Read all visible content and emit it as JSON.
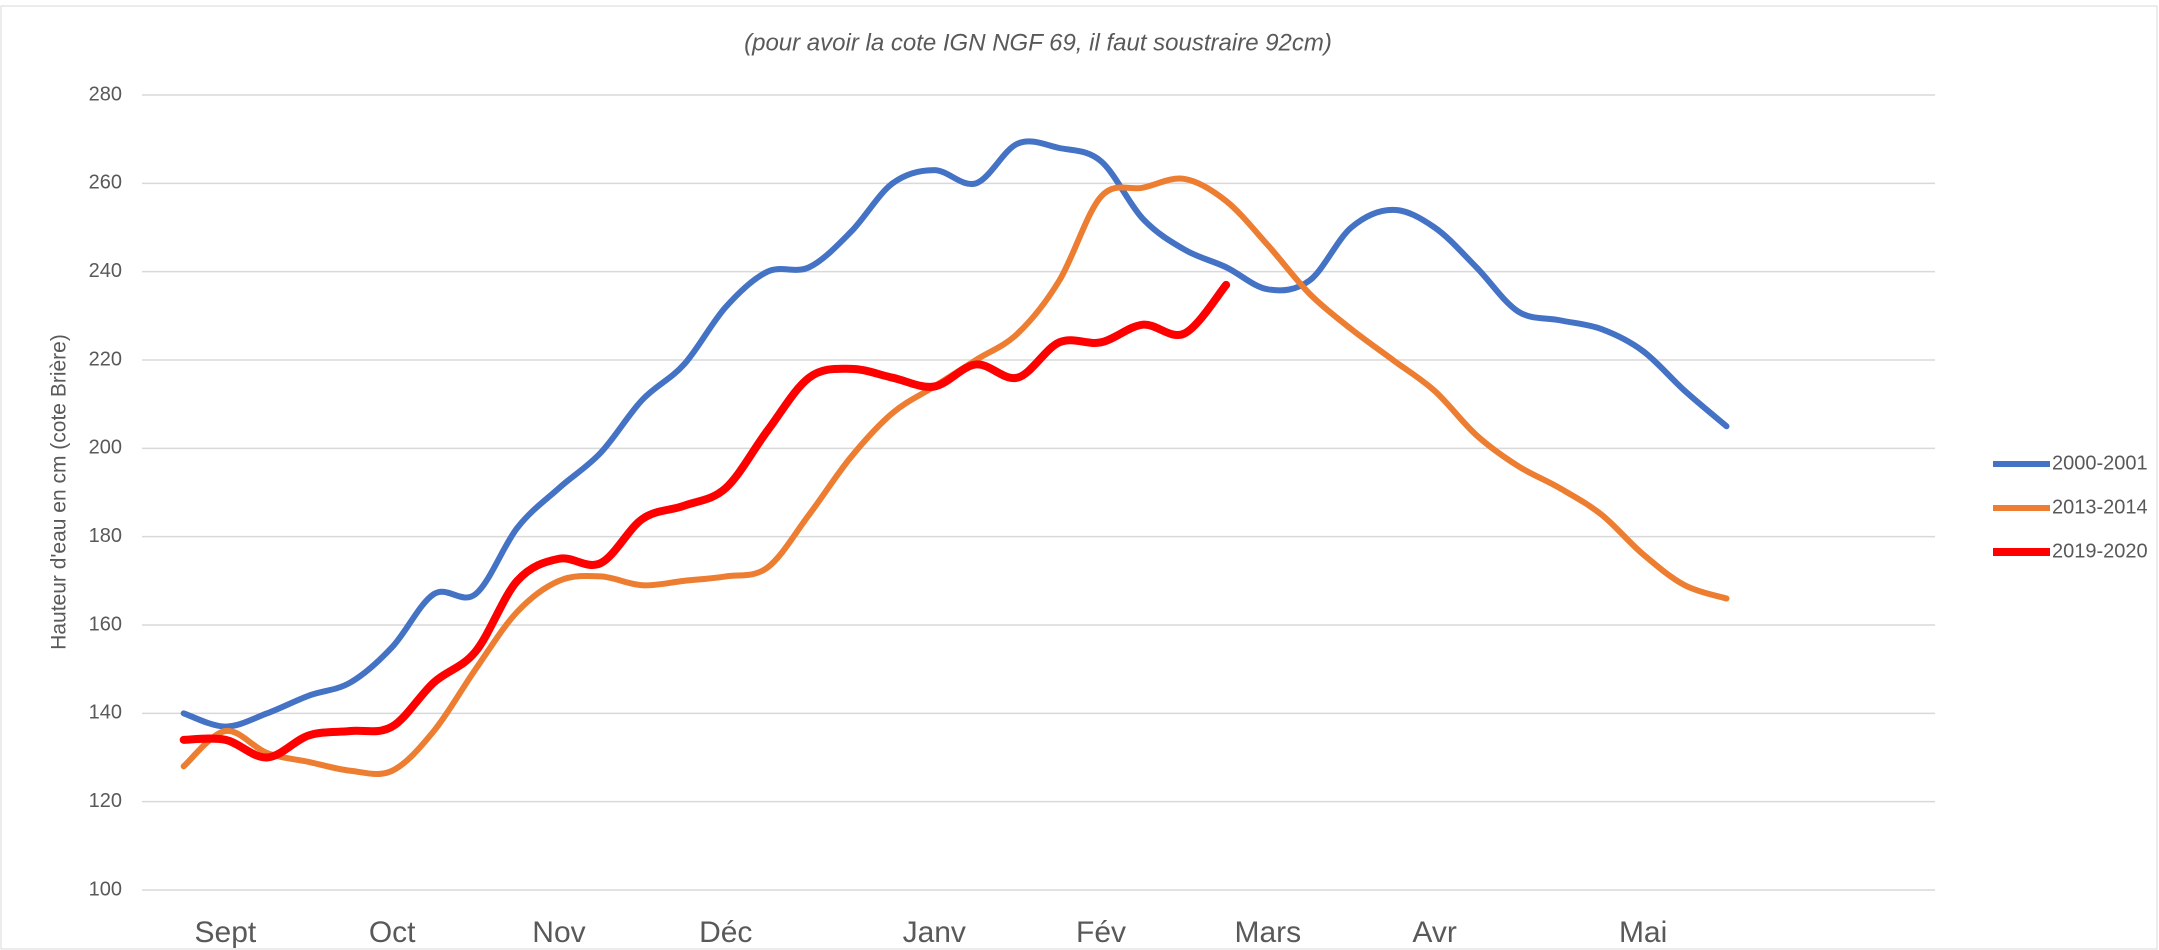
{
  "chart_data": {
    "type": "line",
    "subtitle": "(pour avoir la cote IGN NGF 69, il faut soustraire 92cm)",
    "y_label": "Hauteur d'eau en cm (cote Brière)",
    "categories": [
      null,
      "Sept",
      null,
      null,
      null,
      "Oct",
      null,
      null,
      null,
      "Nov",
      null,
      null,
      null,
      "Déc",
      null,
      null,
      null,
      null,
      "Janv",
      null,
      null,
      null,
      "Fév",
      null,
      null,
      null,
      "Mars",
      null,
      null,
      null,
      "Avr",
      null,
      null,
      null,
      null,
      "Mai",
      null,
      null,
      null,
      null,
      null,
      null
    ],
    "series": [
      {
        "name": "2000-2001",
        "color": "#4472c4",
        "values": [
          140,
          137,
          140,
          144,
          147,
          155,
          167,
          167,
          182,
          191,
          199,
          211,
          219,
          232,
          240,
          241,
          249,
          260,
          263,
          260,
          269,
          268,
          265,
          252,
          245,
          241,
          236,
          238,
          250,
          254,
          250,
          241,
          231,
          229,
          227,
          222,
          213,
          205,
          null,
          null,
          null,
          null
        ]
      },
      {
        "name": "2013-2014",
        "color": "#ed7d31",
        "values": [
          128,
          136,
          131,
          129,
          127,
          127,
          136,
          150,
          163,
          170,
          171,
          169,
          170,
          171,
          173,
          185,
          198,
          208,
          214,
          220,
          226,
          238,
          257,
          259,
          261,
          256,
          246,
          235,
          227,
          220,
          213,
          203,
          196,
          191,
          185,
          176,
          169,
          166,
          null,
          null,
          null,
          null
        ]
      },
      {
        "name": "2019-2020",
        "color": "#ff0000",
        "values": [
          134,
          134,
          130,
          135,
          136,
          137,
          147,
          154,
          170,
          175,
          174,
          184,
          187,
          191,
          204,
          216,
          218,
          216,
          214,
          219,
          216,
          224,
          224,
          228,
          226,
          237,
          null,
          null,
          null,
          null,
          null,
          null,
          null,
          null,
          null,
          null,
          null,
          null,
          null,
          null,
          null,
          null
        ]
      }
    ],
    "ylim": [
      100,
      280
    ],
    "yticks": [
      100,
      120,
      140,
      160,
      180,
      200,
      220,
      240,
      260,
      280
    ],
    "grid": true,
    "legend": "right"
  }
}
